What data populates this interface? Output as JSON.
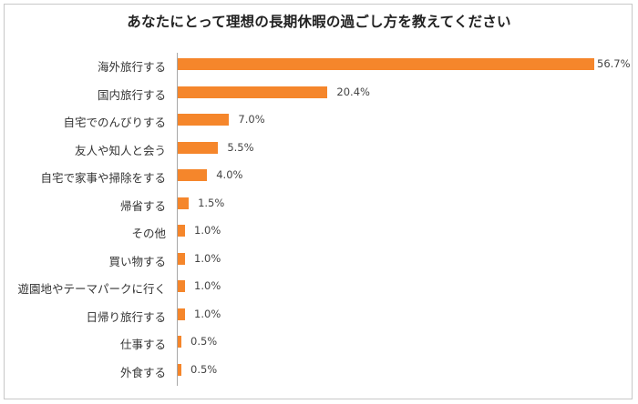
{
  "chart_data": {
    "type": "bar",
    "orientation": "horizontal",
    "title": "あなたにとって理想の長期休暇の過ごし方を教えてください",
    "xlabel": "",
    "ylabel": "",
    "unit": "%",
    "grid": false,
    "legend": null,
    "bar_color": "#f5862b",
    "categories": [
      "海外旅行する",
      "国内旅行する",
      "自宅でのんびりする",
      "友人や知人と会う",
      "自宅で家事や掃除をする",
      "帰省する",
      "その他",
      "買い物する",
      "遊園地やテーマパークに行く",
      "日帰り旅行する",
      "仕事する",
      "外食する"
    ],
    "values": [
      56.7,
      20.4,
      7.0,
      5.5,
      4.0,
      1.5,
      1.0,
      1.0,
      1.0,
      1.0,
      0.5,
      0.5
    ],
    "value_labels": [
      "56.7%",
      "20.4%",
      "7.0%",
      "5.5%",
      "4.0%",
      "1.5%",
      "1.0%",
      "1.0%",
      "1.0%",
      "1.0%",
      "0.5%",
      "0.5%"
    ]
  }
}
